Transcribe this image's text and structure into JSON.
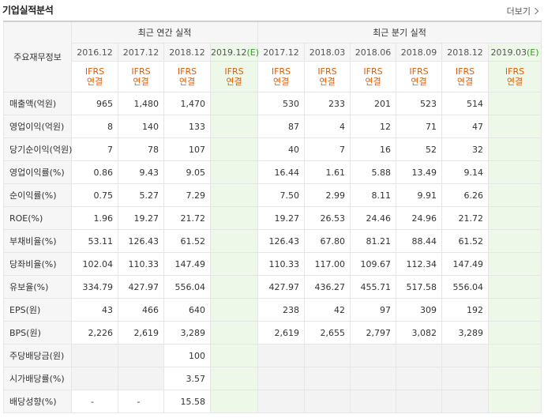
{
  "section": {
    "title": "기업실적분석",
    "more_label": "더보기"
  },
  "headers": {
    "row_label": "주요재무정보",
    "annual_label": "최근 연간 실적",
    "quarter_label": "최근 분기 실적",
    "annual_periods": [
      "2016.12",
      "2017.12",
      "2018.12",
      "2019.12"
    ],
    "annual_est_suffix": "(E)",
    "quarter_periods": [
      "2017.12",
      "2018.03",
      "2018.06",
      "2018.09",
      "2018.12",
      "2019.03"
    ],
    "quarter_est_suffix": "(E)",
    "ifrs_line1": "IFRS",
    "ifrs_line2": "연결"
  },
  "rows": [
    {
      "label": "매출액(억원)",
      "annual": [
        "965",
        "1,480",
        "1,470",
        ""
      ],
      "quarter": [
        "530",
        "233",
        "201",
        "523",
        "514",
        ""
      ]
    },
    {
      "label": "영업이익(억원)",
      "annual": [
        "8",
        "140",
        "133",
        ""
      ],
      "quarter": [
        "87",
        "4",
        "12",
        "71",
        "47",
        ""
      ]
    },
    {
      "label": "당기순이익(억원)",
      "annual": [
        "7",
        "78",
        "107",
        ""
      ],
      "quarter": [
        "40",
        "7",
        "16",
        "52",
        "32",
        ""
      ]
    },
    {
      "label": "영업이익률(%)",
      "annual": [
        "0.86",
        "9.43",
        "9.05",
        ""
      ],
      "quarter": [
        "16.44",
        "1.61",
        "5.88",
        "13.49",
        "9.14",
        ""
      ]
    },
    {
      "label": "순이익률(%)",
      "annual": [
        "0.75",
        "5.27",
        "7.29",
        ""
      ],
      "quarter": [
        "7.50",
        "2.99",
        "8.11",
        "9.91",
        "6.26",
        ""
      ]
    },
    {
      "label": "ROE(%)",
      "annual": [
        "1.96",
        "19.27",
        "21.72",
        ""
      ],
      "quarter": [
        "19.27",
        "26.53",
        "24.46",
        "24.96",
        "21.72",
        ""
      ]
    },
    {
      "label": "부채비율(%)",
      "annual": [
        "53.11",
        "126.43",
        "61.52",
        ""
      ],
      "quarter": [
        "126.43",
        "67.80",
        "81.21",
        "88.44",
        "61.52",
        ""
      ]
    },
    {
      "label": "당좌비율(%)",
      "annual": [
        "102.04",
        "110.33",
        "147.49",
        ""
      ],
      "quarter": [
        "110.33",
        "117.00",
        "109.67",
        "112.34",
        "147.49",
        ""
      ]
    },
    {
      "label": "유보율(%)",
      "annual": [
        "334.79",
        "427.97",
        "556.04",
        ""
      ],
      "quarter": [
        "427.97",
        "436.27",
        "455.71",
        "517.58",
        "556.04",
        ""
      ]
    },
    {
      "label": "EPS(원)",
      "annual": [
        "43",
        "466",
        "640",
        ""
      ],
      "quarter": [
        "238",
        "42",
        "97",
        "309",
        "192",
        ""
      ]
    },
    {
      "label": "BPS(원)",
      "annual": [
        "2,226",
        "2,619",
        "3,289",
        ""
      ],
      "quarter": [
        "2,619",
        "2,655",
        "2,797",
        "3,082",
        "3,289",
        ""
      ]
    },
    {
      "label": "주당배당금(원)",
      "annual": [
        "",
        "",
        "100",
        ""
      ],
      "quarter": [
        "",
        "",
        "",
        "",
        "",
        ""
      ]
    },
    {
      "label": "시가배당률(%)",
      "annual": [
        "",
        "",
        "3.57",
        ""
      ],
      "quarter": [
        "",
        "",
        "",
        "",
        "",
        ""
      ]
    },
    {
      "label": "배당성향(%)",
      "annual": [
        "-",
        "-",
        "15.58",
        ""
      ],
      "quarter": [
        "",
        "",
        "",
        "",
        "",
        ""
      ]
    }
  ]
}
